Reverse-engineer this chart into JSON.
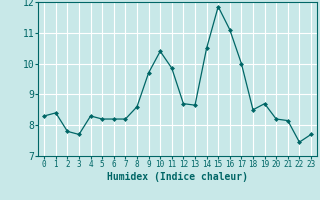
{
  "x": [
    0,
    1,
    2,
    3,
    4,
    5,
    6,
    7,
    8,
    9,
    10,
    11,
    12,
    13,
    14,
    15,
    16,
    17,
    18,
    19,
    20,
    21,
    22,
    23
  ],
  "y": [
    8.3,
    8.4,
    7.8,
    7.7,
    8.3,
    8.2,
    8.2,
    8.2,
    8.6,
    9.7,
    10.4,
    9.85,
    8.7,
    8.65,
    10.5,
    11.85,
    11.1,
    10.0,
    8.5,
    8.7,
    8.2,
    8.15,
    7.45,
    7.7
  ],
  "xlabel": "Humidex (Indice chaleur)",
  "ylim": [
    7,
    12
  ],
  "yticks": [
    7,
    8,
    9,
    10,
    11,
    12
  ],
  "xticks": [
    0,
    1,
    2,
    3,
    4,
    5,
    6,
    7,
    8,
    9,
    10,
    11,
    12,
    13,
    14,
    15,
    16,
    17,
    18,
    19,
    20,
    21,
    22,
    23
  ],
  "line_color": "#006666",
  "marker": "D",
  "marker_size": 2.0,
  "bg_color": "#c8e8e8",
  "grid_color": "#ffffff",
  "axes_bg": "#c8e8e8"
}
